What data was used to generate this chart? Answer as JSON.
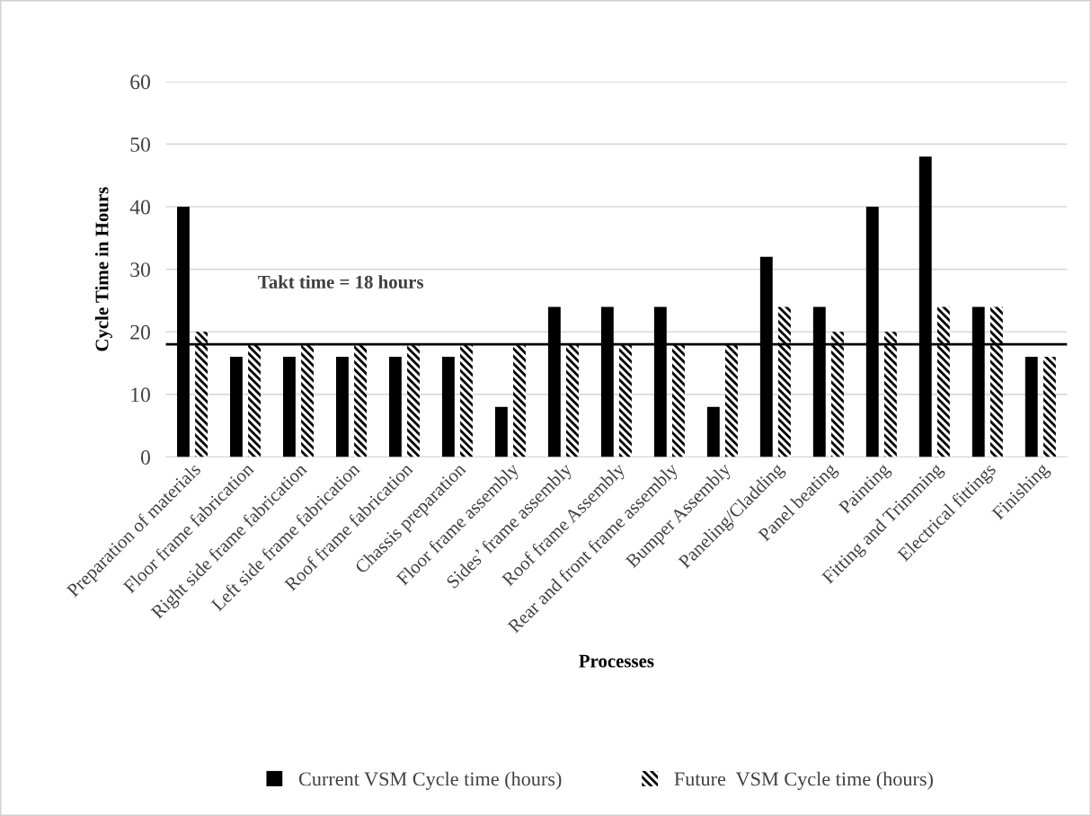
{
  "chart_data": {
    "type": "bar",
    "xlabel": "Processes",
    "ylabel": "Cycle Time in Hours",
    "categories": [
      "Preparation of materials",
      "Floor frame fabrication",
      "Right side frame fabrication",
      "Left side frame fabrication",
      "Roof frame fabrication",
      "Chassis preparation",
      "Floor frame assembly",
      "Sides’ frame assembly",
      "Roof frame Assembly",
      "Rear and front frame assembly",
      "Bumper Assembly",
      "Paneling/Cladding",
      "Panel beating",
      "Painting",
      "Fitting and Trimming",
      "Electrical fittings",
      "Finishing"
    ],
    "series": [
      {
        "name": "Current VSM Cycle time (hours)",
        "color": "#000000",
        "values": [
          40,
          16,
          16,
          16,
          16,
          16,
          8,
          24,
          24,
          24,
          8,
          32,
          24,
          40,
          48,
          24,
          16
        ]
      },
      {
        "name": "Future  VSM Cycle time (hours)",
        "color": "#000000",
        "values": [
          20,
          18,
          18,
          18,
          18,
          18,
          18,
          18,
          18,
          18,
          18,
          24,
          20,
          20,
          24,
          24,
          16
        ]
      }
    ],
    "ylim": [
      0,
      60
    ],
    "yticks": [
      0,
      10,
      20,
      30,
      40,
      50,
      60
    ],
    "grid": "y",
    "legend": "bottom",
    "ref_lines": [
      {
        "axis": "y",
        "value": 18,
        "label": "Takt time = 18 hours",
        "color": "#000000"
      }
    ]
  }
}
